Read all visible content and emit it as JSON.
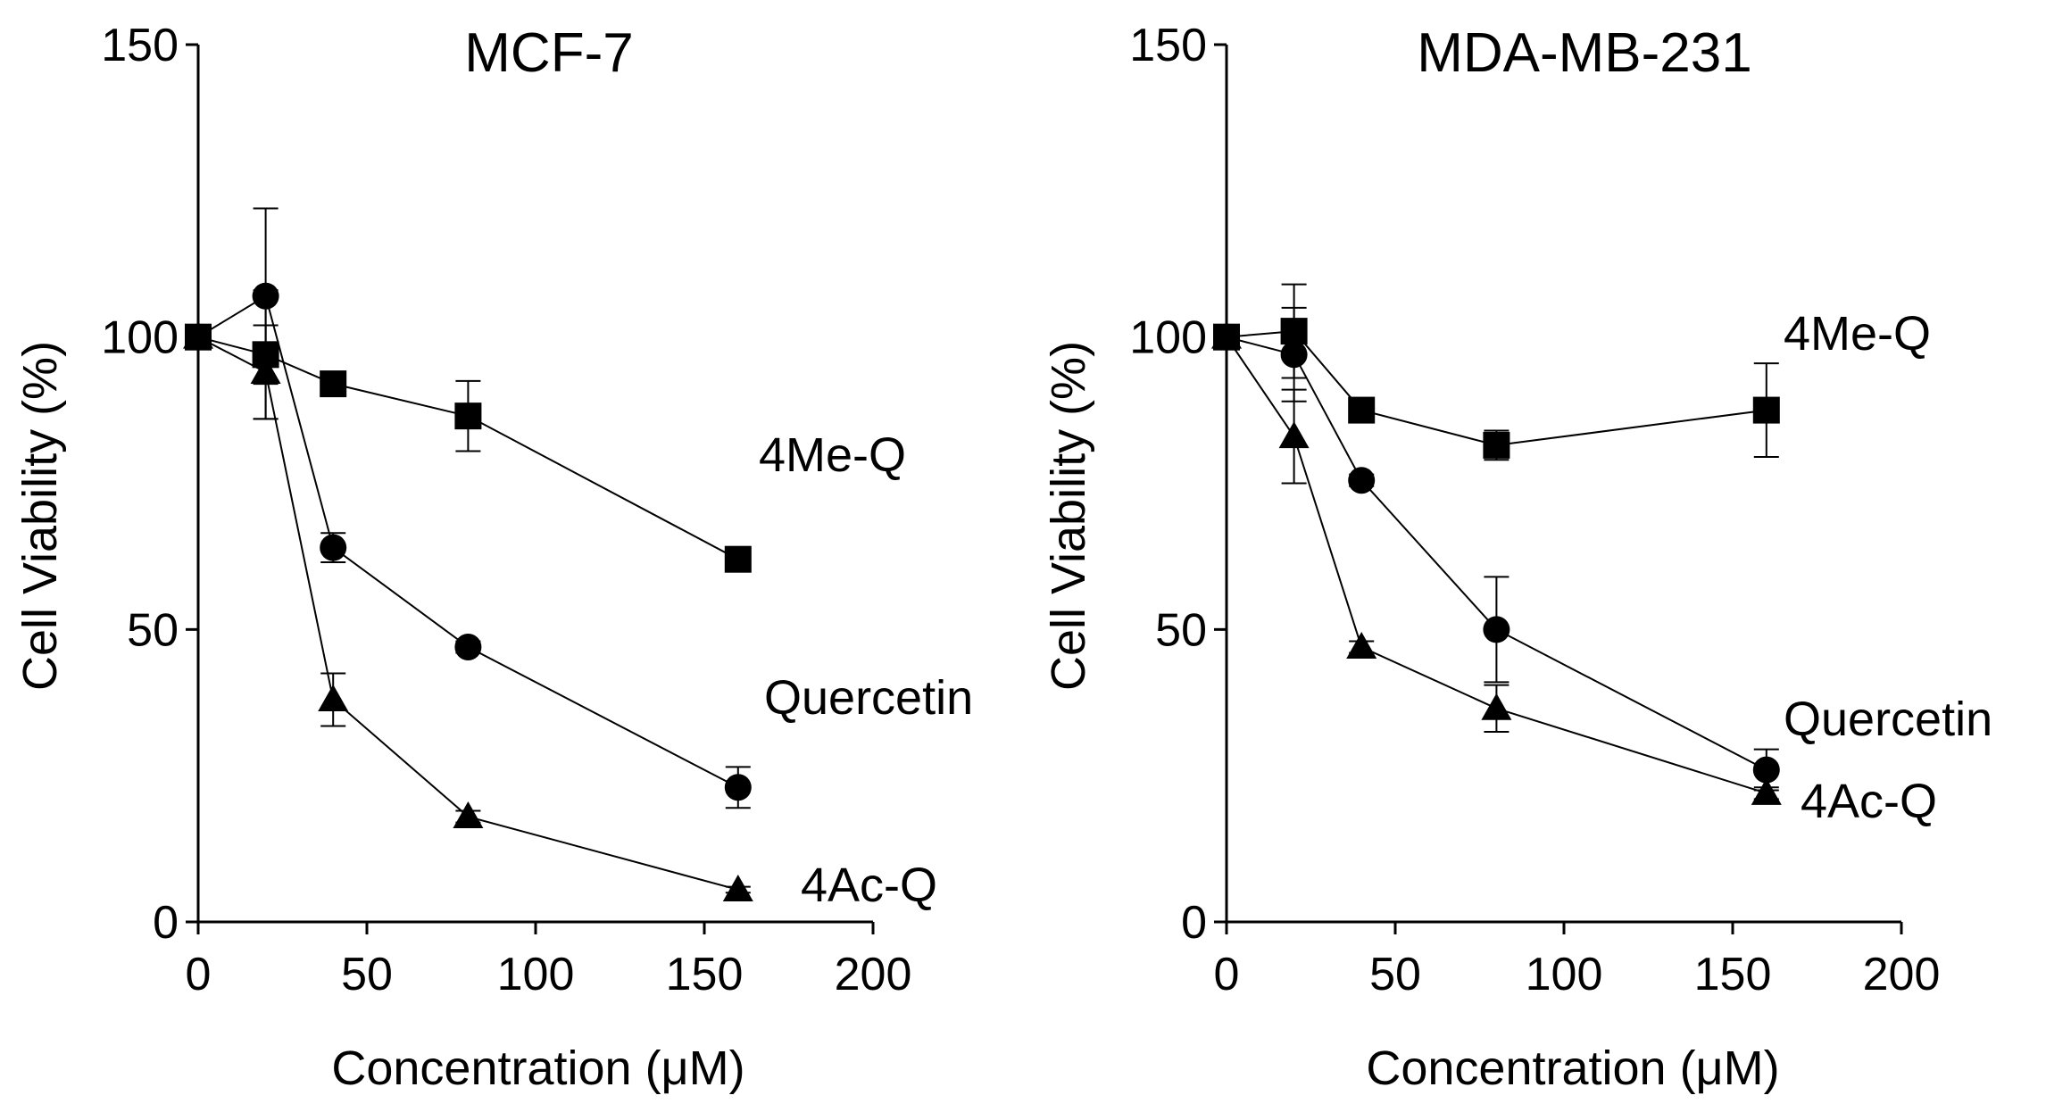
{
  "chart_data": [
    {
      "type": "line",
      "title": "MCF-7",
      "xlabel": "Concentration (μM)",
      "ylabel": "Cell Viability (%)",
      "xlim": [
        0,
        200
      ],
      "ylim": [
        0,
        150
      ],
      "xticks": [
        0,
        50,
        100,
        150,
        200
      ],
      "yticks": [
        0,
        50,
        100,
        150
      ],
      "xtick_labels": [
        "0",
        "50",
        "100",
        "150",
        "200"
      ],
      "ytick_labels": [
        "0",
        "50",
        "100",
        "150"
      ],
      "grid": false,
      "x": [
        0,
        20,
        40,
        80,
        160
      ],
      "series": [
        {
          "name": "4Me-Q",
          "marker": "square",
          "values": [
            100,
            97,
            92,
            86.5,
            62
          ],
          "errors": [
            0,
            11,
            1.5,
            6,
            1
          ]
        },
        {
          "name": "Quercetin",
          "marker": "circle",
          "values": [
            100,
            107,
            64,
            47,
            23
          ],
          "errors": [
            0,
            15,
            2.5,
            1,
            3.5
          ]
        },
        {
          "name": "4Ac-Q",
          "marker": "triangle",
          "values": [
            100,
            94,
            38,
            18,
            5.5
          ],
          "errors": [
            0,
            8,
            4.5,
            1,
            0.5
          ]
        }
      ]
    },
    {
      "type": "line",
      "title": "MDA-MB-231",
      "xlabel": "Concentration (μM)",
      "ylabel": "Cell Viability (%)",
      "xlim": [
        0,
        200
      ],
      "ylim": [
        0,
        150
      ],
      "xticks": [
        0,
        50,
        100,
        150,
        200
      ],
      "yticks": [
        0,
        50,
        100,
        150
      ],
      "xtick_labels": [
        "0",
        "50",
        "100",
        "150",
        "200"
      ],
      "ytick_labels": [
        "0",
        "50",
        "100",
        "150"
      ],
      "grid": false,
      "x": [
        0,
        20,
        40,
        80,
        160
      ],
      "series": [
        {
          "name": "4Me-Q",
          "marker": "square",
          "values": [
            100,
            101,
            87.5,
            81.5,
            87.5
          ],
          "errors": [
            0,
            8,
            1,
            2.5,
            8
          ]
        },
        {
          "name": "Quercetin",
          "marker": "circle",
          "values": [
            100,
            97,
            75.5,
            50,
            26
          ],
          "errors": [
            0,
            8,
            1,
            9,
            3.5
          ]
        },
        {
          "name": "4Ac-Q",
          "marker": "triangle",
          "values": [
            100,
            83,
            47,
            36.5,
            22
          ],
          "errors": [
            0,
            8,
            1,
            4,
            1
          ]
        }
      ]
    }
  ]
}
